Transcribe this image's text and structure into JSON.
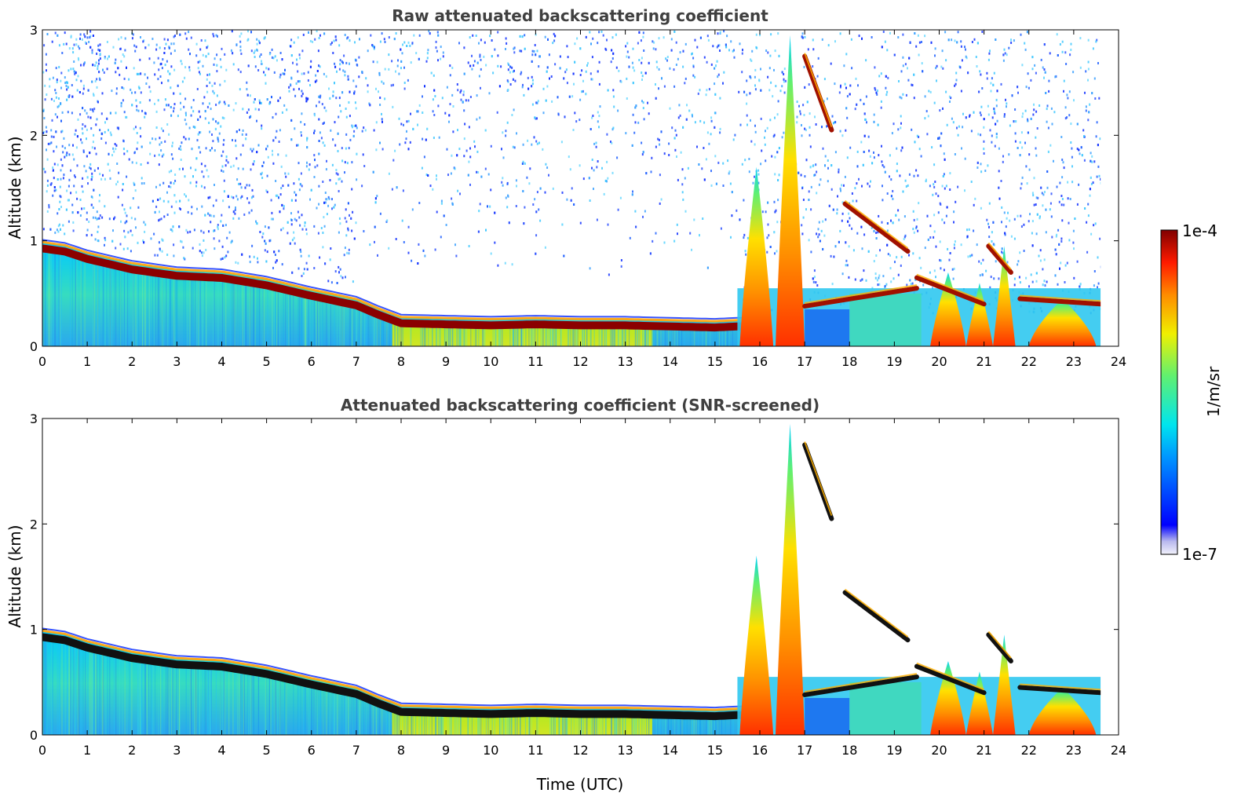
{
  "chart_data": [
    {
      "type": "heatmap",
      "title": "Raw attenuated backscattering coefficient",
      "xlabel": "",
      "ylabel": "Altitude (km)",
      "xlim": [
        0,
        24
      ],
      "ylim": [
        0,
        3
      ],
      "xticks": [
        "0",
        "1",
        "2",
        "3",
        "4",
        "5",
        "6",
        "7",
        "8",
        "9",
        "10",
        "11",
        "12",
        "13",
        "14",
        "15",
        "16",
        "17",
        "18",
        "19",
        "20",
        "21",
        "22",
        "23",
        "24"
      ],
      "yticks": [
        "0",
        "1",
        "2",
        "3"
      ],
      "data_end_hour": 23.6,
      "screened": false,
      "boundary_layer_top_km": {
        "hours": [
          0,
          0.5,
          1,
          2,
          3,
          4,
          5,
          6,
          7,
          7.5,
          8,
          9,
          10,
          11,
          12,
          13,
          14,
          15,
          15.5
        ],
        "values": [
          0.98,
          0.95,
          0.88,
          0.78,
          0.72,
          0.7,
          0.63,
          0.53,
          0.44,
          0.35,
          0.27,
          0.26,
          0.25,
          0.26,
          0.25,
          0.25,
          0.24,
          0.23,
          0.24
        ]
      },
      "cloud_streaks": [
        {
          "hours": [
            17.0,
            17.6
          ],
          "km": [
            2.75,
            2.05
          ]
        },
        {
          "hours": [
            17.9,
            19.3
          ],
          "km": [
            1.35,
            0.9
          ]
        },
        {
          "hours": [
            17.0,
            19.5
          ],
          "km": [
            0.38,
            0.55
          ]
        },
        {
          "hours": [
            19.5,
            21.0
          ],
          "km": [
            0.65,
            0.4
          ]
        },
        {
          "hours": [
            21.1,
            21.6
          ],
          "km": [
            0.95,
            0.7
          ]
        },
        {
          "hours": [
            21.8,
            23.6
          ],
          "km": [
            0.45,
            0.4
          ]
        }
      ]
    },
    {
      "type": "heatmap",
      "title": "Attenuated backscattering coefficient (SNR-screened)",
      "xlabel": "Time (UTC)",
      "ylabel": "Altitude (km)",
      "xlim": [
        0,
        24
      ],
      "ylim": [
        0,
        3
      ],
      "xticks": [
        "0",
        "1",
        "2",
        "3",
        "4",
        "5",
        "6",
        "7",
        "8",
        "9",
        "10",
        "11",
        "12",
        "13",
        "14",
        "15",
        "16",
        "17",
        "18",
        "19",
        "20",
        "21",
        "22",
        "23",
        "24"
      ],
      "yticks": [
        "0",
        "1",
        "2",
        "3"
      ],
      "data_end_hour": 23.6,
      "screened": true
    }
  ],
  "colorbar": {
    "label": "1/m/sr",
    "max_label": "1e-4",
    "min_label": "1e-7",
    "colormap": "jet",
    "scale": "log"
  },
  "colors": {
    "title_text": "#404040",
    "axis_text": "#000000"
  }
}
